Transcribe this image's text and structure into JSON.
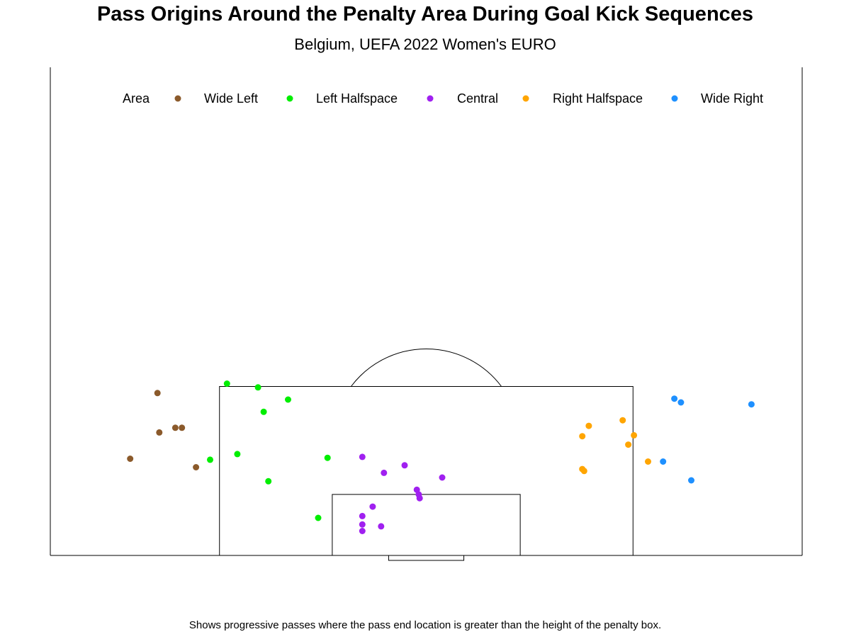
{
  "header": {
    "title": "Pass Origins Around the Penalty Area During Goal Kick Sequences",
    "subtitle": "Belgium, UEFA 2022 Women's EURO",
    "caption": "Shows progressive passes where the pass end location is greater than the height of the penalty box."
  },
  "chart_data": {
    "type": "scatter",
    "title": "Pass Origins Around the Penalty Area During Goal Kick Sequences",
    "subtitle": "Belgium, UEFA 2022 Women's EURO",
    "caption": "Shows progressive passes where the pass end location is greater than the height of the penalty box.",
    "legend": {
      "title": "Area",
      "position": "top",
      "entries": [
        "Wide Left",
        "Left Halfspace",
        "Central",
        "Right Halfspace",
        "Wide Right"
      ]
    },
    "pitch": {
      "x_range": [
        0,
        80
      ],
      "y_range": [
        0,
        52
      ],
      "penalty_box": {
        "x": [
          18,
          62
        ],
        "y_depth": 18
      },
      "six_yard_box": {
        "x": [
          30,
          50
        ],
        "y_depth": 6.5
      },
      "goal": {
        "x": [
          36,
          44
        ],
        "depth": 0.5
      },
      "penalty_spot_y": 12,
      "arc_radius": 10
    },
    "series": [
      {
        "name": "Wide Left",
        "color": "#8B5A2B",
        "points": [
          [
            11.4,
            17.3
          ],
          [
            11.6,
            13.1
          ],
          [
            13.3,
            13.6
          ],
          [
            14.0,
            13.6
          ],
          [
            8.5,
            10.3
          ],
          [
            15.5,
            9.4
          ]
        ]
      },
      {
        "name": "Left Halfspace",
        "color": "#00EE00",
        "points": [
          [
            18.8,
            18.3
          ],
          [
            22.1,
            17.9
          ],
          [
            25.3,
            16.6
          ],
          [
            22.7,
            15.3
          ],
          [
            17.0,
            10.2
          ],
          [
            19.9,
            10.8
          ],
          [
            29.5,
            10.4
          ],
          [
            23.2,
            7.9
          ],
          [
            28.5,
            4.0
          ]
        ]
      },
      {
        "name": "Central",
        "color": "#A020F0",
        "points": [
          [
            33.2,
            10.5
          ],
          [
            35.5,
            8.8
          ],
          [
            37.7,
            9.6
          ],
          [
            41.7,
            8.3
          ],
          [
            39.0,
            7.0
          ],
          [
            39.2,
            6.5
          ],
          [
            39.3,
            6.1
          ],
          [
            34.3,
            5.2
          ],
          [
            33.2,
            4.2
          ],
          [
            33.2,
            3.3
          ],
          [
            35.2,
            3.1
          ],
          [
            33.2,
            2.6
          ]
        ]
      },
      {
        "name": "Right Halfspace",
        "color": "#FFA500",
        "points": [
          [
            57.3,
            13.8
          ],
          [
            60.9,
            14.4
          ],
          [
            62.1,
            12.8
          ],
          [
            61.5,
            11.8
          ],
          [
            56.6,
            12.7
          ],
          [
            56.6,
            9.2
          ],
          [
            56.8,
            9.0
          ],
          [
            63.6,
            10.0
          ]
        ]
      },
      {
        "name": "Wide Right",
        "color": "#1E90FF",
        "points": [
          [
            66.4,
            16.7
          ],
          [
            67.1,
            16.3
          ],
          [
            74.6,
            16.1
          ],
          [
            65.2,
            10.0
          ],
          [
            68.2,
            8.0
          ]
        ]
      }
    ]
  }
}
